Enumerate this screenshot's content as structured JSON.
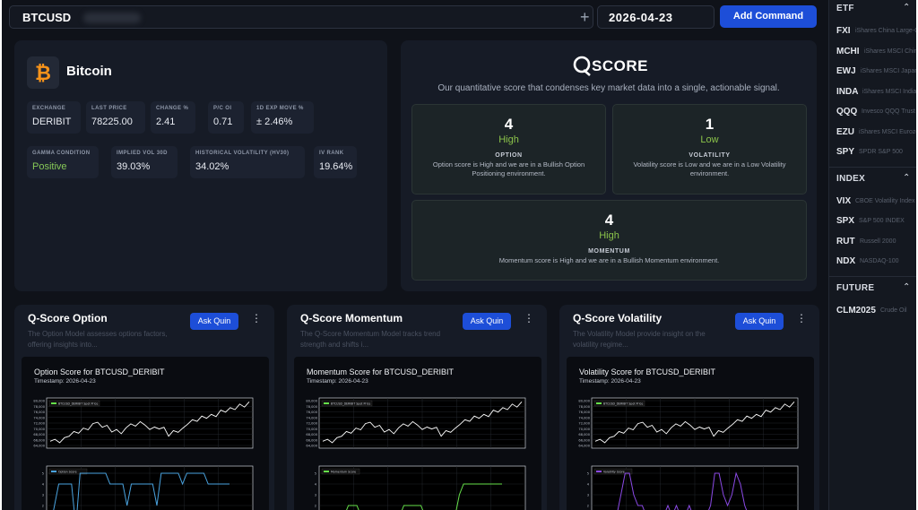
{
  "topbar": {
    "search_value": "BTCUSD",
    "plus_icon": "+",
    "date_value": "2026-04-23",
    "add_command_label": "Add Command"
  },
  "asset": {
    "icon": "bitcoin-icon",
    "name": "Bitcoin",
    "metrics_row1": [
      {
        "label": "EXCHANGE",
        "value": "DERIBIT"
      },
      {
        "label": "LAST PRICE",
        "value": "78225.00"
      },
      {
        "label": "CHANGE %",
        "value": "2.41"
      },
      {
        "label": "P/C OI",
        "value": "0.71"
      },
      {
        "label": "1D EXP MOVE %",
        "value": "± 2.46%"
      }
    ],
    "metrics_row2": [
      {
        "label": "GAMMA CONDITION",
        "value": "Positive"
      },
      {
        "label": "IMPLIED VOL 30D",
        "value": "39.03%"
      },
      {
        "label": "HISTORICAL VOLATILITY (HV30)",
        "value": "34.02%"
      },
      {
        "label": "IV RANK",
        "value": "19.64%"
      }
    ],
    "positive_color": "#86c857"
  },
  "qscore": {
    "logo_text": "SCORE",
    "subtitle": "Our quantitative score that condenses key market data into a single, actionable signal.",
    "option": {
      "score": "4",
      "level": "High",
      "category": "OPTION",
      "description": "Option score is High and we are in a Bullish Option Positioning environment."
    },
    "volatility": {
      "score": "1",
      "level": "Low",
      "category": "VOLATILITY",
      "description": "Volatility score is Low and we are in a Low Volatility environment."
    },
    "momentum": {
      "score": "4",
      "level": "High",
      "category": "MOMENTUM",
      "description": "Momentum score is High and we are in a Bullish Momentum environment."
    },
    "level_color": "#8bc34a"
  },
  "panels": {
    "option": {
      "title": "Q-Score Option",
      "ask_label": "Ask Quin",
      "description": "The Option Model assesses options factors, offering insights into...",
      "chart_title": "Option Score for BTCUSD_DERIBIT",
      "timestamp": "Timestamp: 2026-04-23",
      "legend_top": "BTCUSD_DERIBIT Spot Price",
      "legend_bottom": "Option Score",
      "color": "#4aa3df"
    },
    "momentum": {
      "title": "Q-Score Momentum",
      "ask_label": "Ask Quin",
      "description": "The Q-Score Momentum Model tracks trend strength and shifts i...",
      "chart_title": "Momentum Score for BTCUSD_DERIBIT",
      "timestamp": "Timestamp: 2026-04-23",
      "legend_top": "BTCUSD_DERIBIT Spot Price",
      "legend_bottom": "Momentum Score",
      "color": "#66e04a"
    },
    "volatility": {
      "title": "Q-Score Volatility",
      "ask_label": "Ask Quin",
      "description": "The Volatility Model provide insight on the volatility regime...",
      "chart_title": "Volatility Score for BTCUSD_DERIBIT",
      "timestamp": "Timestamp: 2026-04-23",
      "legend_top": "BTCUSD_DERIBIT Spot Price",
      "legend_bottom": "Volatility Score",
      "color": "#8b4ae6"
    },
    "y_ticks_top": [
      "80,000",
      "78,000",
      "76,000",
      "74,000",
      "72,000",
      "70,000",
      "68,000",
      "66,000",
      "64,000"
    ],
    "y_ticks_bottom": [
      "5",
      "4",
      "3",
      "2",
      "1"
    ],
    "price_series": [
      65500,
      66200,
      65000,
      66800,
      67300,
      69000,
      68400,
      70200,
      69600,
      71800,
      72300,
      70500,
      71200,
      68800,
      69700,
      68200,
      70300,
      71700,
      70900,
      72500,
      71300,
      69700,
      70600,
      69900,
      70500,
      67300,
      69300,
      68700,
      70200,
      71600,
      73200,
      72600,
      74500,
      73700,
      75100,
      74300,
      76600,
      75900,
      77500,
      76800,
      78800,
      77700,
      79600
    ],
    "option_scores": [
      0,
      2,
      4,
      4,
      4,
      4,
      0,
      5,
      5,
      5,
      5,
      5,
      5,
      5,
      4,
      4,
      4,
      4,
      2,
      4,
      4,
      4,
      4,
      4,
      4,
      2,
      5,
      5,
      5,
      5,
      5,
      4,
      5,
      5,
      5,
      5,
      5,
      4,
      4,
      4,
      4,
      4,
      4
    ],
    "momentum_scores": [
      1,
      1,
      1,
      1,
      1,
      1,
      2,
      2,
      2,
      1,
      1,
      1,
      1,
      1,
      1,
      1,
      1,
      1,
      1,
      2,
      2,
      2,
      2,
      2,
      1,
      1,
      1,
      1,
      1,
      1,
      1,
      1,
      3,
      4,
      4,
      4,
      4,
      4,
      4,
      4,
      4,
      4,
      4
    ],
    "volatility_scores": [
      1,
      1,
      1,
      1,
      1,
      1,
      3,
      5,
      5,
      3,
      2,
      2,
      1,
      1,
      1,
      1,
      1,
      2,
      1,
      2,
      1,
      1,
      2,
      1,
      1,
      1,
      1,
      2,
      5,
      5,
      3,
      2,
      3,
      5,
      4,
      2,
      1,
      1,
      1,
      1,
      1,
      1,
      1
    ]
  },
  "sidebar": {
    "sections": [
      {
        "header": "ETF",
        "items": [
          {
            "ticker": "FXI",
            "name": "iShares China Large-Cap"
          },
          {
            "ticker": "MCHI",
            "name": "iShares MSCI China"
          },
          {
            "ticker": "EWJ",
            "name": "iShares MSCI Japan"
          },
          {
            "ticker": "INDA",
            "name": "iShares MSCI India"
          },
          {
            "ticker": "QQQ",
            "name": "Invesco QQQ Trust"
          },
          {
            "ticker": "EZU",
            "name": "iShares MSCI Eurozone"
          },
          {
            "ticker": "SPY",
            "name": "SPDR S&P 500"
          }
        ]
      },
      {
        "header": "INDEX",
        "items": [
          {
            "ticker": "VIX",
            "name": "CBOE Volatility Index"
          },
          {
            "ticker": "SPX",
            "name": "S&P 500 INDEX"
          },
          {
            "ticker": "RUT",
            "name": "Russell 2000"
          },
          {
            "ticker": "NDX",
            "name": "NASDAQ-100"
          }
        ]
      },
      {
        "header": "FUTURE",
        "items": [
          {
            "ticker": "CLM2025",
            "name": "Crude Oil"
          }
        ]
      }
    ]
  }
}
